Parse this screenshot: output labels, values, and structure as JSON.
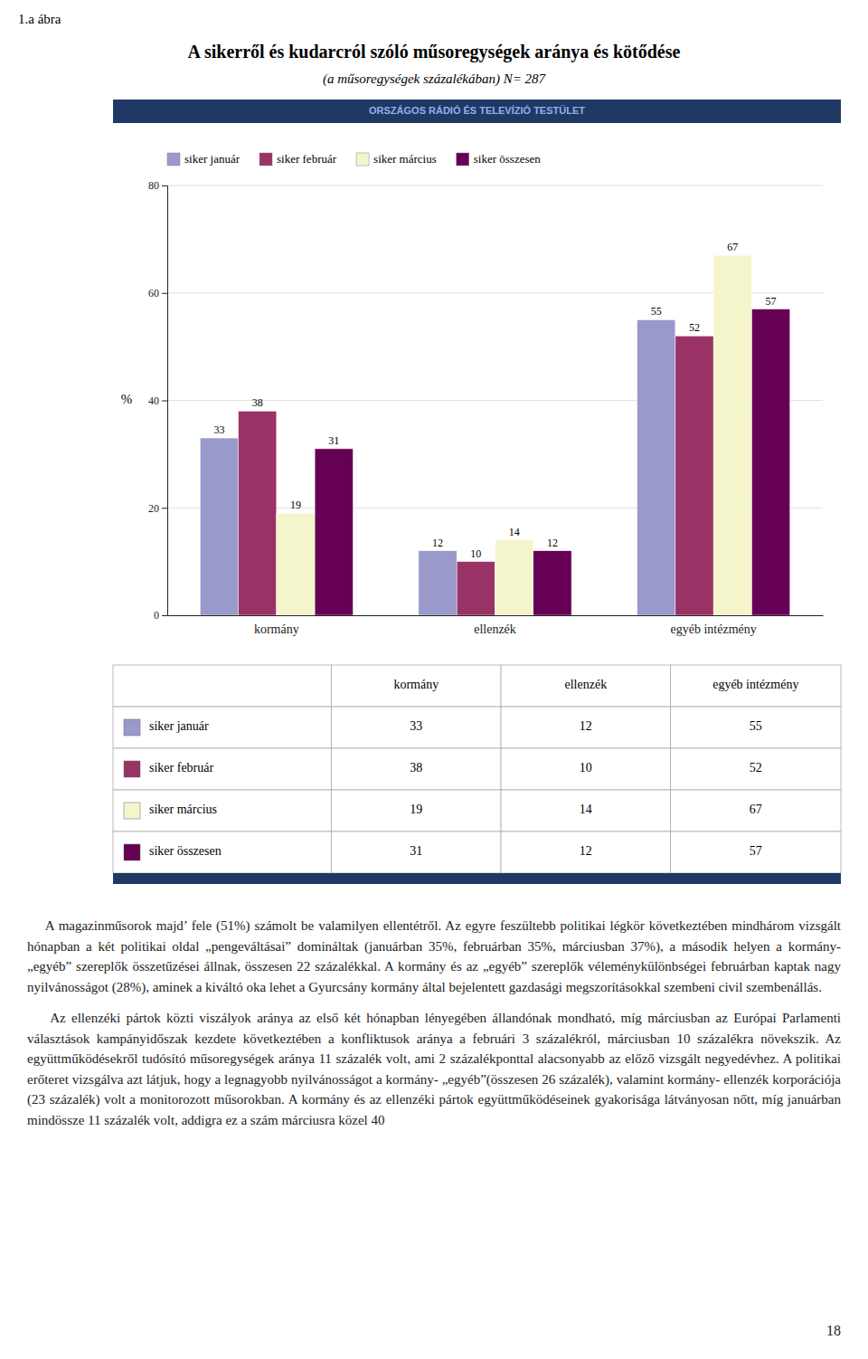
{
  "figure_label": "1.a ábra",
  "header_text": "ORSZÁGOS RÁDIÓ ÉS TELEVÍZIÓ TESTÜLET",
  "chart_data": {
    "type": "bar",
    "title": "A sikerről és kudarcról szóló műsoregységek aránya és kötődése",
    "subtitle": "(a műsoregységek százalékában) N= 287",
    "ylabel": "%",
    "categories": [
      "kormány",
      "ellenzék",
      "egyéb intézmény"
    ],
    "series": [
      {
        "name": "siker január",
        "color": "#9999cc",
        "values": [
          33,
          12,
          55
        ]
      },
      {
        "name": "siker február",
        "color": "#993366",
        "values": [
          38,
          10,
          52
        ]
      },
      {
        "name": "siker március",
        "color": "#f5f5cc",
        "values": [
          19,
          14,
          67
        ]
      },
      {
        "name": "siker összesen",
        "color": "#660055",
        "values": [
          31,
          12,
          57
        ]
      }
    ],
    "ylim": [
      0,
      80
    ],
    "yticks": [
      0,
      20,
      40,
      60,
      80
    ],
    "grid": true,
    "legend": "top-left",
    "data_labels": true
  },
  "body_text": [
    "    A magazinműsorok majd’ fele (51%) számolt be valamilyen ellentétről. Az egyre feszültebb politikai légkör következtében mindhárom vizsgált hónapban a két politikai oldal „pengeváltásai” domináltak (januárban 35%, februárban 35%, márciusban 37%), a második helyen a kormány- „egyéb” szereplők összetűzései állnak, összesen 22 százalékkal. A kormány és az „egyéb” szereplők véleménykülönbségei februárban kaptak nagy nyilvánosságot (28%), aminek a kiváltó oka lehet a Gyurcsány kormány által bejelentett gazdasági megszorításokkal szembeni civil szembenállás.",
    "    Az ellenzéki pártok közti viszályok aránya az első két hónapban lényegében állandónak mondható, míg márciusban az Európai Parlamenti választások kampányidőszak kezdete következtében a konfliktusok aránya a februári 3 százalékról, márciusban 10 százalékra növekszik. Az együttműködésekről tudósító műsoregységek aránya 11 százalék volt, ami 2 százalékponttal alacsonyabb az előző vizsgált negyedévhez. A politikai erőteret vizsgálva azt látjuk, hogy a legnagyobb nyilvánosságot a kormány- „egyéb”(összesen 26 százalék), valamint kormány- ellenzék korporációja (23 százalék) volt a monitorozott műsorokban. A kormány és az ellenzéki pártok együttműködéseinek gyakorisága látványosan nőtt, míg januárban mindössze 11 százalék volt, addigra ez a szám márciusra közel 40"
  ],
  "page_number": "18"
}
